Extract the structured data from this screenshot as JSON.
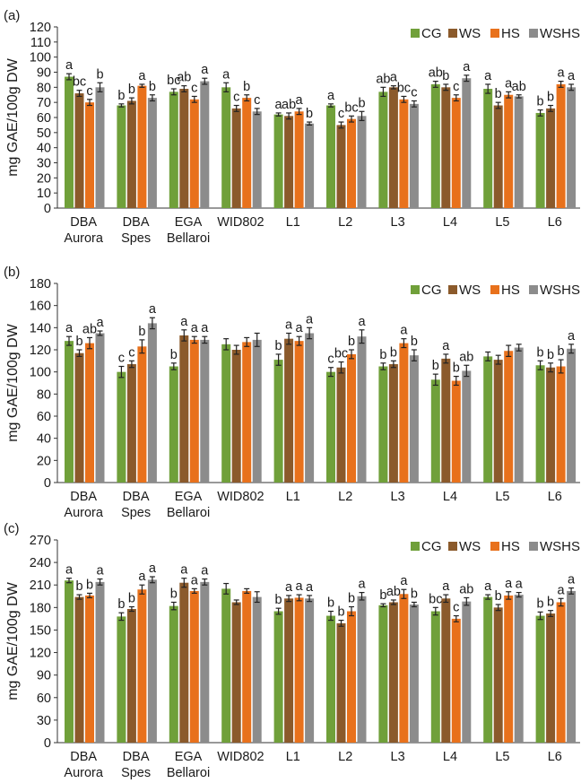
{
  "legend_labels": [
    "CG",
    "WS",
    "HS",
    "WSHS"
  ],
  "colors": [
    "#70a03a",
    "#8b5a2b",
    "#e8711c",
    "#8c8c8c"
  ],
  "chart_data": [
    {
      "type": "bar",
      "panel_label": "(a)",
      "ylabel": "mg GAE/100g DW",
      "ylim": [
        0,
        120
      ],
      "yticks": [
        0,
        10,
        20,
        30,
        40,
        50,
        60,
        70,
        80,
        90,
        100,
        110,
        120
      ],
      "legend_position": "top-right",
      "categories": [
        [
          "DBA",
          "Aurora"
        ],
        [
          "DBA",
          "Spes"
        ],
        [
          "EGA",
          "Bellaroi"
        ],
        [
          "WID802"
        ],
        [
          "L1"
        ],
        [
          "L2"
        ],
        [
          "L3"
        ],
        [
          "L4"
        ],
        [
          "L5"
        ],
        [
          "L6"
        ]
      ],
      "series": [
        {
          "name": "CG",
          "values": [
            87,
            68,
            77,
            80,
            62,
            68,
            77,
            82,
            79,
            63
          ],
          "errors": [
            2,
            1,
            2,
            3,
            1,
            1,
            3,
            2,
            3,
            2
          ],
          "letters": [
            "a",
            "b",
            "bc",
            "a",
            "a",
            "a",
            "ab",
            "ab",
            "a",
            "b"
          ]
        },
        {
          "name": "WS",
          "values": [
            76,
            71,
            79,
            66,
            61,
            55,
            80,
            80,
            68,
            66
          ],
          "errors": [
            2,
            2,
            2,
            2,
            2,
            2,
            1,
            2,
            2,
            2
          ],
          "letters": [
            "bc",
            "b",
            "ab",
            "c",
            "ab",
            "c",
            "a",
            "b",
            "b",
            "b"
          ]
        },
        {
          "name": "HS",
          "values": [
            70,
            81,
            72,
            73,
            64,
            59,
            72,
            73,
            75,
            82
          ],
          "errors": [
            2,
            1,
            2,
            2,
            2,
            2,
            2,
            2,
            2,
            2
          ],
          "letters": [
            "c",
            "a",
            "c",
            "b",
            "a",
            "bc",
            "bc",
            "c",
            "a",
            "a"
          ]
        },
        {
          "name": "WSHS",
          "values": [
            80,
            73,
            84,
            64,
            56,
            61,
            69,
            86,
            74,
            80
          ],
          "errors": [
            3,
            2,
            2,
            2,
            1,
            3,
            2,
            2,
            1,
            2
          ],
          "letters": [
            "b",
            "b",
            "a",
            "c",
            "b",
            "b",
            "c",
            "a",
            "ab",
            "a"
          ]
        }
      ]
    },
    {
      "type": "bar",
      "panel_label": "(b)",
      "ylabel": "mg GAE/100g DW",
      "ylim": [
        0,
        180
      ],
      "yticks": [
        0,
        20,
        40,
        60,
        80,
        100,
        120,
        140,
        160,
        180
      ],
      "legend_position": "top-right",
      "categories": [
        [
          "DBA",
          "Aurora"
        ],
        [
          "DBA",
          "Spes"
        ],
        [
          "EGA",
          "Bellaroi"
        ],
        [
          "WID802"
        ],
        [
          "L1"
        ],
        [
          "L2"
        ],
        [
          "L3"
        ],
        [
          "L4"
        ],
        [
          "L5"
        ],
        [
          "L6"
        ]
      ],
      "series": [
        {
          "name": "CG",
          "values": [
            128,
            100,
            105,
            125,
            111,
            100,
            105,
            93,
            114,
            106
          ],
          "errors": [
            4,
            5,
            3,
            5,
            5,
            4,
            3,
            5,
            4,
            4
          ],
          "letters": [
            "a",
            "c",
            "b",
            "",
            "b",
            "c",
            "b",
            "b",
            "",
            "b"
          ]
        },
        {
          "name": "WS",
          "values": [
            117,
            107,
            133,
            120,
            130,
            104,
            107,
            112,
            111,
            104
          ],
          "errors": [
            3,
            3,
            5,
            4,
            5,
            5,
            3,
            4,
            4,
            4
          ],
          "letters": [
            "b",
            "c",
            "a",
            "",
            "a",
            "bc",
            "b",
            "a",
            "",
            "b"
          ]
        },
        {
          "name": "HS",
          "values": [
            126,
            123,
            129,
            127,
            128,
            116,
            126,
            92,
            119,
            105
          ],
          "errors": [
            5,
            6,
            3,
            4,
            4,
            4,
            4,
            4,
            5,
            6
          ],
          "letters": [
            "ab",
            "b",
            "a",
            "",
            "a",
            "b",
            "a",
            "b",
            "",
            "b"
          ]
        },
        {
          "name": "WSHS",
          "values": [
            135,
            144,
            129,
            129,
            135,
            132,
            115,
            101,
            122,
            121
          ],
          "errors": [
            2,
            5,
            3,
            6,
            5,
            6,
            5,
            5,
            3,
            4
          ],
          "letters": [
            "a",
            "a",
            "a",
            "",
            "a",
            "a",
            "b",
            "ab",
            "",
            "a"
          ]
        }
      ]
    },
    {
      "type": "bar",
      "panel_label": "(c)",
      "ylabel": "mg GAE/100g DW",
      "ylim": [
        0,
        270
      ],
      "yticks": [
        0,
        30,
        60,
        90,
        120,
        150,
        180,
        210,
        240,
        270
      ],
      "legend_position": "top-right",
      "categories": [
        [
          "DBA",
          "Aurora"
        ],
        [
          "DBA",
          "Spes"
        ],
        [
          "EGA",
          "Bellaroi"
        ],
        [
          "WID802"
        ],
        [
          "L1"
        ],
        [
          "L2"
        ],
        [
          "L3"
        ],
        [
          "L4"
        ],
        [
          "L5"
        ],
        [
          "L6"
        ]
      ],
      "series": [
        {
          "name": "CG",
          "values": [
            216,
            168,
            182,
            205,
            175,
            169,
            183,
            175,
            194,
            169
          ],
          "errors": [
            3,
            5,
            5,
            7,
            4,
            6,
            2,
            5,
            3,
            5
          ],
          "letters": [
            "a",
            "b",
            "b",
            "",
            "b",
            "b",
            "b",
            "bc",
            "a",
            "b"
          ]
        },
        {
          "name": "WS",
          "values": [
            194,
            178,
            213,
            187,
            192,
            159,
            187,
            192,
            180,
            172
          ],
          "errors": [
            3,
            3,
            6,
            3,
            4,
            4,
            3,
            5,
            4,
            4
          ],
          "letters": [
            "b",
            "b",
            "a",
            "",
            "a",
            "b",
            "ab",
            "a",
            "b",
            "b"
          ]
        },
        {
          "name": "HS",
          "values": [
            196,
            204,
            202,
            202,
            193,
            175,
            198,
            165,
            196,
            187
          ],
          "errors": [
            3,
            6,
            3,
            3,
            4,
            6,
            6,
            4,
            5,
            5
          ],
          "letters": [
            "b",
            "a",
            "a",
            "",
            "a",
            "b",
            "a",
            "c",
            "a",
            "a"
          ]
        },
        {
          "name": "WSHS",
          "values": [
            214,
            217,
            214,
            194,
            192,
            195,
            184,
            188,
            197,
            202
          ],
          "errors": [
            4,
            4,
            4,
            7,
            4,
            5,
            3,
            5,
            3,
            4
          ],
          "letters": [
            "a",
            "a",
            "a",
            "",
            "a",
            "a",
            "b",
            "ab",
            "a",
            "a"
          ]
        }
      ]
    }
  ]
}
